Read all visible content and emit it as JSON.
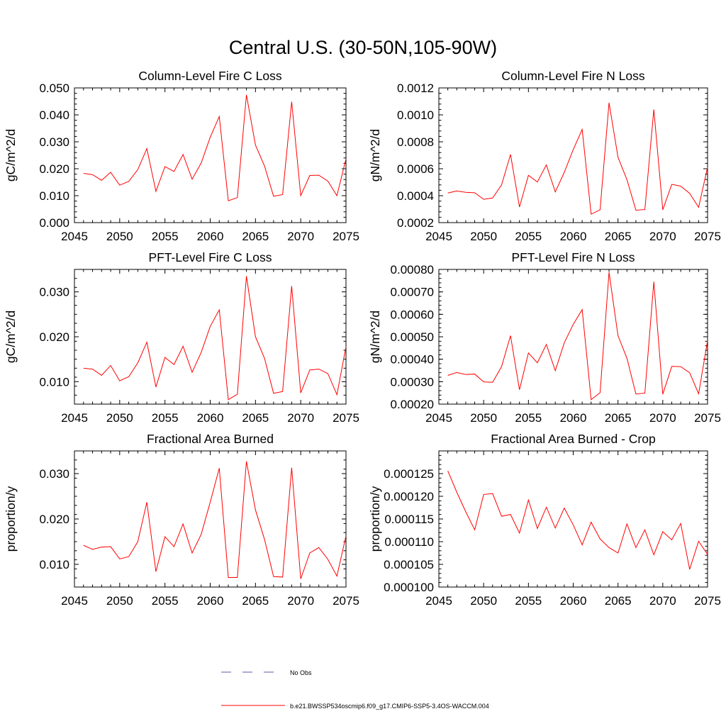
{
  "main_title": "Central U.S. (30-50N,105-90W)",
  "legend": {
    "obs_label": "No Obs",
    "obs_color": "#5a5aa8",
    "model_label": "b.e21.BWSSP534oscmip6.f09_g17.CMIP6-SSP5-3.4OS-WACCM.004",
    "model_color": "#ff0000"
  },
  "chart_data": [
    {
      "type": "line",
      "title": "Column-Level Fire C Loss",
      "ylabel": "gC/m^2/d",
      "xlim": [
        2045,
        2075
      ],
      "ylim": [
        0.0,
        0.05
      ],
      "xticks": [
        2045,
        2050,
        2055,
        2060,
        2065,
        2070,
        2075
      ],
      "xtick_labels": [
        "2045",
        "2050",
        "2055",
        "2060",
        "2065",
        "2070",
        "2075"
      ],
      "yticks": [
        0.0,
        0.01,
        0.02,
        0.03,
        0.04,
        0.05
      ],
      "ytick_labels": [
        "0.000",
        "0.010",
        "0.020",
        "0.030",
        "0.040",
        "0.050"
      ],
      "yminor_step": 0.002,
      "x": [
        2046,
        2047,
        2048,
        2049,
        2050,
        2051,
        2052,
        2053,
        2054,
        2055,
        2056,
        2057,
        2058,
        2059,
        2060,
        2061,
        2062,
        2063,
        2064,
        2065,
        2066,
        2067,
        2068,
        2069,
        2070,
        2071,
        2072,
        2073,
        2074,
        2075
      ],
      "series": [
        {
          "values": [
            0.0183,
            0.0178,
            0.0157,
            0.0187,
            0.0139,
            0.0153,
            0.0197,
            0.0275,
            0.0116,
            0.0208,
            0.019,
            0.0253,
            0.0161,
            0.0221,
            0.0317,
            0.0394,
            0.0081,
            0.0093,
            0.0474,
            0.0288,
            0.021,
            0.0098,
            0.0104,
            0.0449,
            0.01,
            0.0175,
            0.0176,
            0.0154,
            0.01,
            0.0237
          ]
        }
      ]
    },
    {
      "type": "line",
      "title": "Column-Level Fire N Loss",
      "ylabel": "gN/m^2/d",
      "xlim": [
        2045,
        2075
      ],
      "ylim": [
        0.0002,
        0.0012
      ],
      "xticks": [
        2045,
        2050,
        2055,
        2060,
        2065,
        2070,
        2075
      ],
      "xtick_labels": [
        "2045",
        "2050",
        "2055",
        "2060",
        "2065",
        "2070",
        "2075"
      ],
      "yticks": [
        0.0002,
        0.0004,
        0.0006,
        0.0008,
        0.001,
        0.0012
      ],
      "ytick_labels": [
        "0.0002",
        "0.0004",
        "0.0006",
        "0.0008",
        "0.0010",
        "0.0012"
      ],
      "yminor_step": 4e-05,
      "x": [
        2046,
        2047,
        2048,
        2049,
        2050,
        2051,
        2052,
        2053,
        2054,
        2055,
        2056,
        2057,
        2058,
        2059,
        2060,
        2061,
        2062,
        2063,
        2064,
        2065,
        2066,
        2067,
        2068,
        2069,
        2070,
        2071,
        2072,
        2073,
        2074,
        2075
      ],
      "series": [
        {
          "values": [
            0.00042,
            0.000435,
            0.000425,
            0.000422,
            0.000373,
            0.000383,
            0.00048,
            0.000706,
            0.000316,
            0.000551,
            0.000502,
            0.000628,
            0.000428,
            0.000573,
            0.000742,
            0.000892,
            0.000263,
            0.000295,
            0.00109,
            0.000685,
            0.000519,
            0.000292,
            0.000297,
            0.00104,
            0.000295,
            0.000484,
            0.000471,
            0.000417,
            0.000314,
            0.000611
          ]
        }
      ]
    },
    {
      "type": "line",
      "title": "PFT-Level Fire C Loss",
      "ylabel": "gC/m^2/d",
      "xlim": [
        2045,
        2075
      ],
      "ylim": [
        0.005,
        0.035
      ],
      "xticks": [
        2045,
        2050,
        2055,
        2060,
        2065,
        2070,
        2075
      ],
      "xtick_labels": [
        "2045",
        "2050",
        "2055",
        "2060",
        "2065",
        "2070",
        "2075"
      ],
      "yticks": [
        0.01,
        0.02,
        0.03
      ],
      "ytick_labels": [
        "0.010",
        "0.020",
        "0.030"
      ],
      "yminor_step": 0.002,
      "x": [
        2046,
        2047,
        2048,
        2049,
        2050,
        2051,
        2052,
        2053,
        2054,
        2055,
        2056,
        2057,
        2058,
        2059,
        2060,
        2061,
        2062,
        2063,
        2064,
        2065,
        2066,
        2067,
        2068,
        2069,
        2070,
        2071,
        2072,
        2073,
        2074,
        2075
      ],
      "series": [
        {
          "values": [
            0.013,
            0.0128,
            0.0114,
            0.0136,
            0.0102,
            0.0111,
            0.0142,
            0.0188,
            0.0088,
            0.0154,
            0.0138,
            0.0179,
            0.0121,
            0.0165,
            0.0223,
            0.026,
            0.006,
            0.0072,
            0.0335,
            0.02,
            0.0152,
            0.0074,
            0.0078,
            0.0313,
            0.0075,
            0.0126,
            0.0128,
            0.0118,
            0.0071,
            0.0178
          ]
        }
      ]
    },
    {
      "type": "line",
      "title": "PFT-Level Fire N Loss",
      "ylabel": "gN/m^2/d",
      "xlim": [
        2045,
        2075
      ],
      "ylim": [
        0.0002,
        0.0008
      ],
      "xticks": [
        2045,
        2050,
        2055,
        2060,
        2065,
        2070,
        2075
      ],
      "xtick_labels": [
        "2045",
        "2050",
        "2055",
        "2060",
        "2065",
        "2070",
        "2075"
      ],
      "yticks": [
        0.0002,
        0.0003,
        0.0004,
        0.0005,
        0.0006,
        0.0007,
        0.0008
      ],
      "ytick_labels": [
        "0.00020",
        "0.00030",
        "0.00040",
        "0.00050",
        "0.00060",
        "0.00070",
        "0.00080"
      ],
      "yminor_step": 2e-05,
      "x": [
        2046,
        2047,
        2048,
        2049,
        2050,
        2051,
        2052,
        2053,
        2054,
        2055,
        2056,
        2057,
        2058,
        2059,
        2060,
        2061,
        2062,
        2063,
        2064,
        2065,
        2066,
        2067,
        2068,
        2069,
        2070,
        2071,
        2072,
        2073,
        2074,
        2075
      ],
      "series": [
        {
          "values": [
            0.000328,
            0.000341,
            0.000332,
            0.000334,
            0.000299,
            0.000297,
            0.000367,
            0.000505,
            0.000264,
            0.000428,
            0.000384,
            0.000466,
            0.000349,
            0.000473,
            0.000555,
            0.000621,
            0.00022,
            0.000251,
            0.000787,
            0.000505,
            0.000404,
            0.000245,
            0.000249,
            0.000745,
            0.000244,
            0.000368,
            0.000367,
            0.00034,
            0.000246,
            0.000483
          ]
        }
      ]
    },
    {
      "type": "line",
      "title": "Fractional Area Burned",
      "ylabel": "proportion/y",
      "xlim": [
        2045,
        2075
      ],
      "ylim": [
        0.005,
        0.035
      ],
      "xticks": [
        2045,
        2050,
        2055,
        2060,
        2065,
        2070,
        2075
      ],
      "xtick_labels": [
        "2045",
        "2050",
        "2055",
        "2060",
        "2065",
        "2070",
        "2075"
      ],
      "yticks": [
        0.01,
        0.02,
        0.03
      ],
      "ytick_labels": [
        "0.010",
        "0.020",
        "0.030"
      ],
      "yminor_step": 0.002,
      "x": [
        2046,
        2047,
        2048,
        2049,
        2050,
        2051,
        2052,
        2053,
        2054,
        2055,
        2056,
        2057,
        2058,
        2059,
        2060,
        2061,
        2062,
        2063,
        2064,
        2065,
        2066,
        2067,
        2068,
        2069,
        2070,
        2071,
        2072,
        2073,
        2074,
        2075
      ],
      "series": [
        {
          "values": [
            0.0142,
            0.0133,
            0.0138,
            0.0139,
            0.0112,
            0.0117,
            0.015,
            0.0237,
            0.0084,
            0.0161,
            0.0139,
            0.0189,
            0.0125,
            0.0166,
            0.0237,
            0.0312,
            0.0071,
            0.0071,
            0.0327,
            0.022,
            0.0155,
            0.0073,
            0.0072,
            0.0313,
            0.0068,
            0.0125,
            0.0137,
            0.0111,
            0.0074,
            0.0163
          ]
        }
      ]
    },
    {
      "type": "line",
      "title": "Fractional Area Burned - Crop",
      "ylabel": "proportion/y",
      "xlim": [
        2045,
        2075
      ],
      "ylim": [
        0.0001,
        0.00013
      ],
      "xticks": [
        2045,
        2050,
        2055,
        2060,
        2065,
        2070,
        2075
      ],
      "xtick_labels": [
        "2045",
        "2050",
        "2055",
        "2060",
        "2065",
        "2070",
        "2075"
      ],
      "yticks": [
        0.0001,
        0.000105,
        0.00011,
        0.000115,
        0.00012,
        0.000125
      ],
      "ytick_labels": [
        "0.000100",
        "0.000105",
        "0.000110",
        "0.000115",
        "0.000120",
        "0.000125"
      ],
      "yminor_step": 1e-06,
      "x": [
        2046,
        2047,
        2048,
        2049,
        2050,
        2051,
        2052,
        2053,
        2054,
        2055,
        2056,
        2057,
        2058,
        2059,
        2060,
        2061,
        2062,
        2063,
        2064,
        2065,
        2066,
        2067,
        2068,
        2069,
        2070,
        2071,
        2072,
        2073,
        2074,
        2075
      ],
      "series": [
        {
          "values": [
            0.0001256,
            0.0001209,
            0.0001166,
            0.0001126,
            0.0001204,
            0.0001206,
            0.0001156,
            0.000116,
            0.0001119,
            0.0001192,
            0.0001129,
            0.0001176,
            0.000113,
            0.0001174,
            0.0001137,
            0.0001093,
            0.0001143,
            0.0001106,
            0.0001087,
            0.0001075,
            0.0001139,
            0.0001087,
            0.0001126,
            0.0001071,
            0.0001122,
            0.0001104,
            0.000114,
            0.0001039,
            0.0001101,
            0.0001072
          ]
        }
      ]
    }
  ]
}
